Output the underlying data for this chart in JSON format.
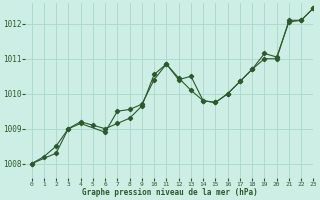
{
  "title": "Graphe pression niveau de la mer (hPa)",
  "background_color": "#cceee4",
  "grid_color": "#aad8cc",
  "line_color": "#2d5a2d",
  "xlim": [
    -0.5,
    23
  ],
  "ylim": [
    1007.6,
    1012.6
  ],
  "yticks": [
    1008,
    1009,
    1010,
    1011,
    1012
  ],
  "xticks": [
    0,
    1,
    2,
    3,
    4,
    5,
    6,
    7,
    8,
    9,
    10,
    11,
    12,
    13,
    14,
    15,
    16,
    17,
    18,
    19,
    20,
    21,
    22,
    23
  ],
  "series1_x": [
    0,
    1,
    2,
    3,
    4,
    5,
    6,
    7,
    8,
    9,
    10,
    11,
    12,
    13,
    14,
    15,
    16,
    17,
    18,
    19,
    20,
    21,
    22,
    23
  ],
  "series1_y": [
    1008.0,
    1008.2,
    1008.5,
    1009.0,
    1009.2,
    1009.1,
    1009.0,
    1009.15,
    1009.3,
    1009.65,
    1010.55,
    1010.85,
    1010.45,
    1010.1,
    1009.8,
    1009.75,
    1010.0,
    1010.35,
    1010.7,
    1011.15,
    1011.05,
    1012.05,
    1012.1,
    1012.45
  ],
  "series2_x": [
    0,
    2,
    3,
    4,
    6,
    7,
    8,
    9,
    10,
    11,
    12,
    13,
    14,
    15,
    16,
    17,
    18,
    19,
    20,
    21,
    22,
    23
  ],
  "series2_y": [
    1008.0,
    1008.3,
    1009.0,
    1009.15,
    1008.9,
    1009.5,
    1009.55,
    1009.7,
    1010.4,
    1010.85,
    1010.4,
    1010.5,
    1009.8,
    1009.75,
    1010.0,
    1010.35,
    1010.7,
    1011.0,
    1011.0,
    1012.1,
    1012.1,
    1012.45
  ]
}
